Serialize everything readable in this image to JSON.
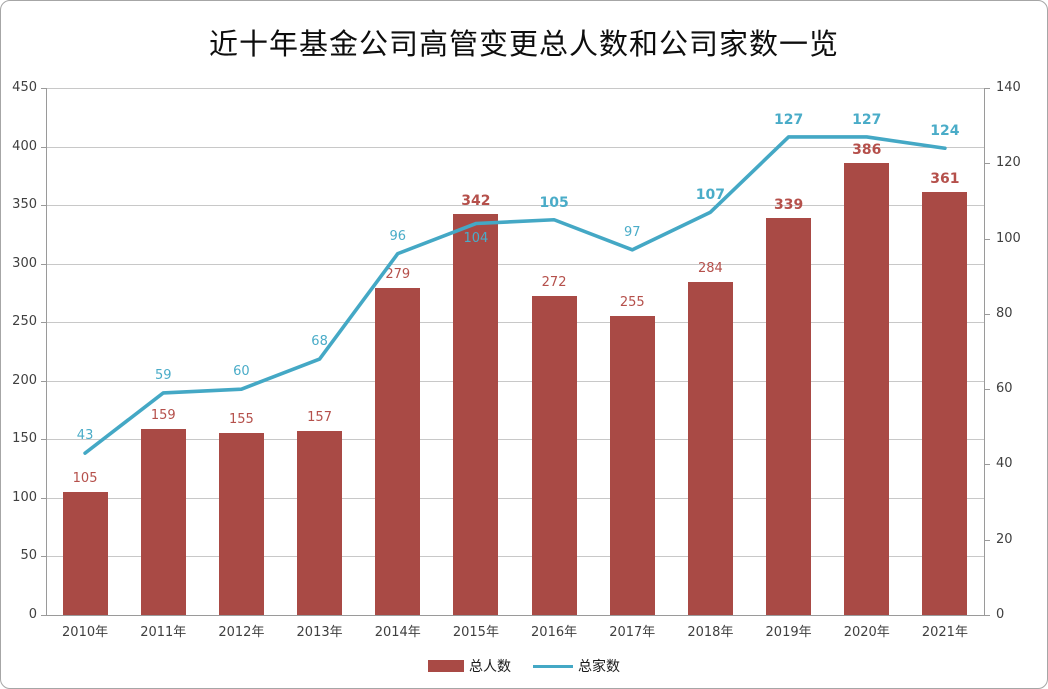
{
  "chart_data": {
    "type": "bar+line combo",
    "title": "近十年基金公司高管变更总人数和公司家数一览",
    "categories": [
      "2010年",
      "2011年",
      "2012年",
      "2013年",
      "2014年",
      "2015年",
      "2016年",
      "2017年",
      "2018年",
      "2019年",
      "2020年",
      "2021年"
    ],
    "series": [
      {
        "name": "总人数",
        "type": "bar",
        "axis": "left",
        "color": "#a94a45",
        "label_color": "#b5504b",
        "values": [
          105,
          159,
          155,
          157,
          279,
          342,
          272,
          255,
          284,
          339,
          386,
          361
        ],
        "bold_labels": [
          false,
          false,
          false,
          false,
          false,
          true,
          false,
          false,
          false,
          true,
          true,
          true
        ]
      },
      {
        "name": "总家数",
        "type": "line",
        "axis": "right",
        "color": "#44a8c5",
        "label_color": "#4aacc8",
        "values": [
          43,
          59,
          60,
          68,
          96,
          104,
          105,
          97,
          107,
          127,
          127,
          124
        ],
        "bold_labels": [
          false,
          false,
          false,
          false,
          false,
          false,
          true,
          false,
          true,
          true,
          true,
          true
        ],
        "label_positions": [
          "above",
          "above",
          "above",
          "above",
          "above",
          "below",
          "above",
          "above",
          "above",
          "above",
          "above",
          "above"
        ]
      }
    ],
    "left_axis": {
      "min": 0,
      "max": 450,
      "step": 50,
      "ticks": [
        450,
        400,
        350,
        300,
        250,
        200,
        150,
        100,
        50,
        0
      ]
    },
    "right_axis": {
      "min": 0,
      "max": 140,
      "step": 20,
      "ticks": [
        140,
        120,
        100,
        80,
        60,
        40,
        20,
        0
      ]
    },
    "grid": true,
    "legend_position": "bottom",
    "legend": [
      "总人数",
      "总家数"
    ]
  }
}
